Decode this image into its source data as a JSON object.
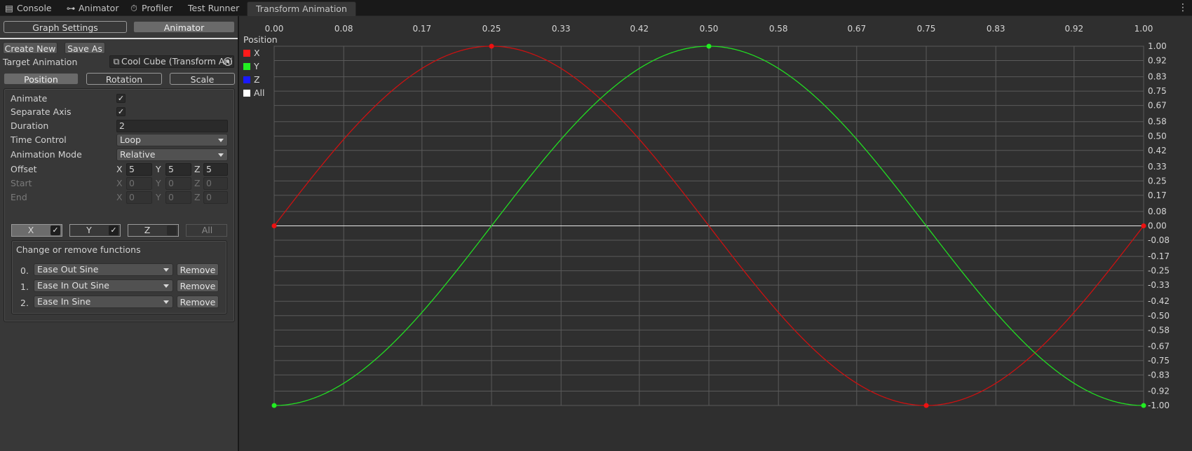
{
  "tabs": [
    {
      "label": "Console",
      "icon": "console-icon"
    },
    {
      "label": "Animator",
      "icon": "animator-icon"
    },
    {
      "label": "Profiler",
      "icon": "profiler-icon"
    },
    {
      "label": "Test Runner",
      "icon": ""
    },
    {
      "label": "Transform Animation",
      "icon": "",
      "active": true
    }
  ],
  "panel": {
    "top_buttons": {
      "graph_settings": "Graph Settings",
      "animator": "Animator"
    },
    "create_new": "Create New",
    "save_as": "Save As",
    "target_label": "Target Animation",
    "target_value": "Cool Cube (Transform Ani",
    "subtabs": {
      "position": "Position",
      "rotation": "Rotation",
      "scale": "Scale"
    },
    "props": {
      "animate_label": "Animate",
      "animate_checked": "✓",
      "separate_axis_label": "Separate Axis",
      "separate_axis_checked": "✓",
      "duration_label": "Duration",
      "duration_value": "2",
      "time_control_label": "Time Control",
      "time_control_value": "Loop",
      "animation_mode_label": "Animation Mode",
      "animation_mode_value": "Relative",
      "offset_label": "Offset",
      "offset": {
        "x": "5",
        "y": "5",
        "z": "5"
      },
      "start_label": "Start",
      "start": {
        "x": "0",
        "y": "0",
        "z": "0"
      },
      "end_label": "End",
      "end": {
        "x": "0",
        "y": "0",
        "z": "0"
      },
      "axis_letters": {
        "x": "X",
        "y": "Y",
        "z": "Z"
      }
    },
    "axis_toggles": {
      "x": {
        "label": "X",
        "check": "✓"
      },
      "y": {
        "label": "Y",
        "check": "✓"
      },
      "z": {
        "label": "Z",
        "check": ""
      },
      "all": {
        "label": "All"
      }
    },
    "functions": {
      "title": "Change or remove functions",
      "remove_label": "Remove",
      "items": [
        {
          "index": "0.",
          "name": "Ease Out Sine"
        },
        {
          "index": "1.",
          "name": "Ease In Out Sine"
        },
        {
          "index": "2.",
          "name": "Ease In Sine"
        }
      ]
    }
  },
  "graph": {
    "title": "Position",
    "legend": [
      {
        "label": "X",
        "color": "#ff1a1a"
      },
      {
        "label": "Y",
        "color": "#22ee22"
      },
      {
        "label": "Z",
        "color": "#1a1aff"
      },
      {
        "label": "All",
        "color": "#ffffff"
      }
    ]
  },
  "chart_data": {
    "type": "line",
    "title": "Position",
    "x_ticks": [
      "0.00",
      "0.08",
      "0.17",
      "0.25",
      "0.33",
      "0.42",
      "0.50",
      "0.58",
      "0.67",
      "0.75",
      "0.83",
      "0.92",
      "1.00"
    ],
    "y_ticks": [
      "1.00",
      "0.92",
      "0.83",
      "0.75",
      "0.67",
      "0.58",
      "0.50",
      "0.42",
      "0.33",
      "0.25",
      "0.17",
      "0.08",
      "0.00",
      "-0.08",
      "-0.17",
      "-0.25",
      "-0.33",
      "-0.42",
      "-0.50",
      "-0.58",
      "-0.67",
      "-0.75",
      "-0.83",
      "-0.92",
      "-1.00"
    ],
    "xlim": [
      0,
      1
    ],
    "ylim": [
      -1,
      1
    ],
    "grid": true,
    "series": [
      {
        "name": "X",
        "color": "#cc1111",
        "function": "sin(2πx)",
        "x": [
          0,
          0.0833,
          0.1667,
          0.25,
          0.3333,
          0.4167,
          0.5,
          0.5833,
          0.6667,
          0.75,
          0.8333,
          0.9167,
          1.0
        ],
        "y": [
          0,
          0.5,
          0.866,
          1.0,
          0.866,
          0.5,
          0,
          -0.5,
          -0.866,
          -1.0,
          -0.866,
          -0.5,
          0
        ],
        "keyframes": [
          {
            "x": 0,
            "y": 0
          },
          {
            "x": 0.25,
            "y": 1
          },
          {
            "x": 0.75,
            "y": -1
          },
          {
            "x": 1.0,
            "y": 0
          }
        ]
      },
      {
        "name": "Y",
        "color": "#22dd22",
        "function": "-cos(2πx)",
        "x": [
          0,
          0.0833,
          0.1667,
          0.25,
          0.3333,
          0.4167,
          0.5,
          0.5833,
          0.6667,
          0.75,
          0.8333,
          0.9167,
          1.0
        ],
        "y": [
          -1.0,
          -0.866,
          -0.5,
          0,
          0.5,
          0.866,
          1.0,
          0.866,
          0.5,
          0,
          -0.5,
          -0.866,
          -1.0
        ],
        "keyframes": [
          {
            "x": 0,
            "y": -1
          },
          {
            "x": 0.5,
            "y": 1
          },
          {
            "x": 1.0,
            "y": -1
          }
        ]
      }
    ]
  }
}
